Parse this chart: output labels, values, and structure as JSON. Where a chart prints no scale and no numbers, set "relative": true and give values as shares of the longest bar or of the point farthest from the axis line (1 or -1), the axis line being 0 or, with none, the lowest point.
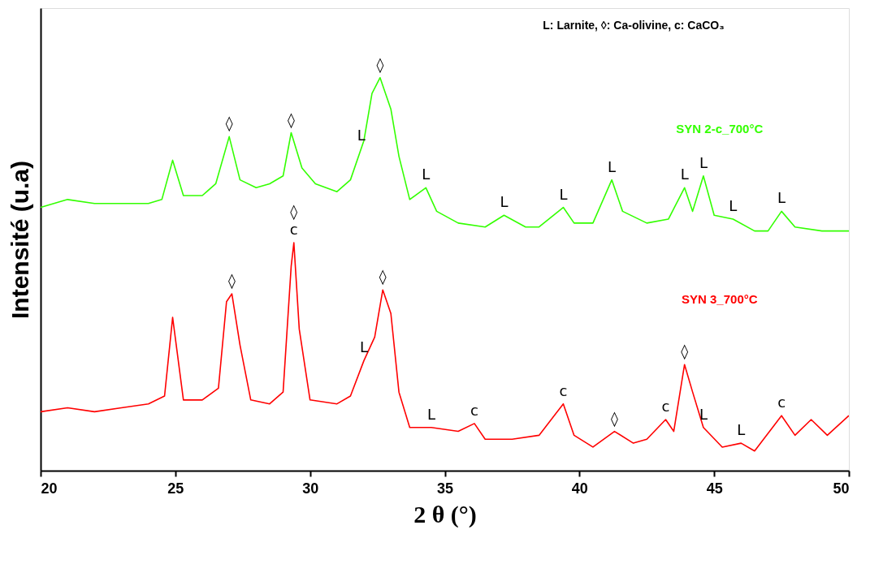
{
  "chart_data": {
    "type": "line",
    "relative": true,
    "xlabel": "2 θ (°)",
    "ylabel": "Intensité (u.a)",
    "xlim": [
      20,
      50
    ],
    "xticks": [
      20,
      25,
      30,
      35,
      40,
      45,
      50
    ],
    "grid": false,
    "x": [
      20,
      21,
      22,
      23,
      24,
      24.5,
      24.9,
      25.3,
      26,
      26.5,
      27,
      27.4,
      28,
      28.5,
      29,
      29.3,
      29.7,
      30.2,
      31,
      31.5,
      32,
      32.3,
      32.6,
      33,
      33.3,
      33.7,
      34.3,
      34.7,
      35.5,
      36.5,
      37.2,
      38,
      38.5,
      39.4,
      39.8,
      40.5,
      41.2,
      41.6,
      42.5,
      43.3,
      43.9,
      44.2,
      44.6,
      45,
      45.7,
      46.5,
      47,
      47.5,
      48,
      49,
      50
    ],
    "series": [
      {
        "name": "SYN 2-c_700°C",
        "color": "#33ff00",
        "values": [
          0.67,
          0.69,
          0.68,
          0.68,
          0.68,
          0.69,
          0.79,
          0.7,
          0.7,
          0.73,
          0.85,
          0.74,
          0.72,
          0.73,
          0.75,
          0.86,
          0.77,
          0.73,
          0.71,
          0.74,
          0.84,
          0.96,
          1.0,
          0.92,
          0.8,
          0.69,
          0.72,
          0.66,
          0.63,
          0.62,
          0.65,
          0.62,
          0.62,
          0.67,
          0.63,
          0.63,
          0.74,
          0.66,
          0.63,
          0.64,
          0.72,
          0.66,
          0.75,
          0.65,
          0.64,
          0.61,
          0.61,
          0.66,
          0.62,
          0.61,
          0.61
        ]
      },
      {
        "name": "SYN 3_700°C",
        "color": "#ff0000",
        "x": [
          20,
          21,
          22,
          23,
          24,
          24.6,
          24.9,
          25.3,
          26,
          26.6,
          26.9,
          27.1,
          27.4,
          27.8,
          28.5,
          29,
          29.3,
          29.4,
          29.6,
          30,
          31,
          31.5,
          32,
          32.4,
          32.7,
          33,
          33.3,
          33.7,
          34.5,
          35.5,
          36.1,
          36.5,
          37.5,
          38.5,
          39.4,
          39.8,
          40.5,
          41.3,
          42,
          42.5,
          43.2,
          43.5,
          43.9,
          44.2,
          44.6,
          45.3,
          46,
          46.5,
          47.5,
          48,
          48.6,
          49.2,
          50
        ],
        "values": [
          0.15,
          0.16,
          0.15,
          0.16,
          0.17,
          0.19,
          0.39,
          0.18,
          0.18,
          0.21,
          0.43,
          0.45,
          0.32,
          0.18,
          0.17,
          0.2,
          0.52,
          0.58,
          0.36,
          0.18,
          0.17,
          0.19,
          0.28,
          0.34,
          0.46,
          0.4,
          0.2,
          0.11,
          0.11,
          0.1,
          0.12,
          0.08,
          0.08,
          0.09,
          0.17,
          0.09,
          0.06,
          0.1,
          0.07,
          0.08,
          0.13,
          0.1,
          0.27,
          0.2,
          0.11,
          0.06,
          0.07,
          0.05,
          0.14,
          0.09,
          0.13,
          0.09,
          0.14
        ]
      }
    ],
    "annotations": [
      "L: Larnite, ◊: Ca-olivine, c: CaCO₃",
      {
        "text": "◊",
        "x": 27,
        "y": 0.85
      },
      {
        "text": "◊",
        "x": 29.3,
        "y": 0.86
      },
      {
        "text": "L",
        "x": 31.9,
        "y": 0.82
      },
      {
        "text": "◊",
        "x": 32.6,
        "y": 1.0
      },
      {
        "text": "L",
        "x": 34.3,
        "y": 0.72
      },
      {
        "text": "L",
        "x": 37.2,
        "y": 0.65
      },
      {
        "text": "L",
        "x": 39.4,
        "y": 0.67
      },
      {
        "text": "L",
        "x": 41.2,
        "y": 0.74
      },
      {
        "text": "L",
        "x": 43.9,
        "y": 0.72
      },
      {
        "text": "L",
        "x": 44.6,
        "y": 0.75
      },
      {
        "text": "L",
        "x": 45.7,
        "y": 0.64
      },
      {
        "text": "L",
        "x": 47.5,
        "y": 0.66
      },
      {
        "text": "c",
        "x": 29.4,
        "y": 0.58
      },
      {
        "text": "◊",
        "x": 29.4,
        "y": 0.58
      },
      {
        "text": "◊",
        "x": 27.1,
        "y": 0.45
      },
      {
        "text": "◊",
        "x": 32.7,
        "y": 0.46
      },
      {
        "text": "L",
        "x": 32.0,
        "y": 0.28
      },
      {
        "text": "L",
        "x": 34.5,
        "y": 0.11
      },
      {
        "text": "c",
        "x": 36.1,
        "y": 0.12
      },
      {
        "text": "c",
        "x": 39.4,
        "y": 0.17
      },
      {
        "text": "◊",
        "x": 41.3,
        "y": 0.1
      },
      {
        "text": "c",
        "x": 43.2,
        "y": 0.13
      },
      {
        "text": "L",
        "x": 44.6,
        "y": 0.11
      },
      {
        "text": "L",
        "x": 46.0,
        "y": 0.07
      },
      {
        "text": "c",
        "x": 47.5,
        "y": 0.14
      },
      {
        "text": "◊",
        "x": 43.9,
        "y": 0.27
      }
    ]
  }
}
